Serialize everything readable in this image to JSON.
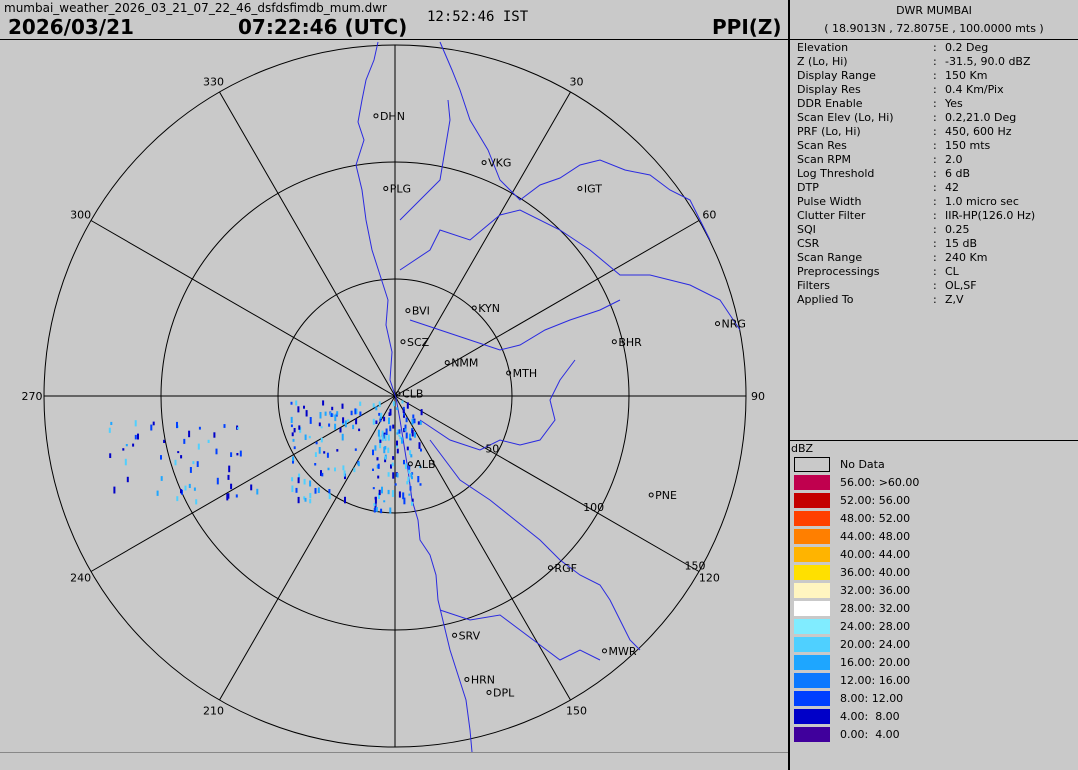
{
  "header": {
    "filename": "mumbai_weather_2026_03_21_07_22_46_dsfdsfimdb_mum.dwr",
    "date": "2026/03/21",
    "time_utc": "07:22:46 (UTC)",
    "time_ist": "12:52:46 IST",
    "product": "PPI(Z)"
  },
  "panel": {
    "title": "DWR MUMBAI",
    "coords": "( 18.9013N , 72.8075E , 100.0000 mts )",
    "params": [
      {
        "key": "Elevation",
        "value": "0.2 Deg"
      },
      {
        "key": "Z (Lo, Hi)",
        "value": "-31.5, 90.0 dBZ"
      },
      {
        "key": "Display Range",
        "value": "150 Km"
      },
      {
        "key": "Display Res",
        "value": "0.4 Km/Pix"
      },
      {
        "key": "DDR Enable",
        "value": "Yes"
      },
      {
        "key": "Scan Elev (Lo, Hi)",
        "value": "0.2,21.0 Deg"
      },
      {
        "key": "PRF (Lo, Hi)",
        "value": "450, 600 Hz"
      },
      {
        "key": "Scan Res",
        "value": "150 mts"
      },
      {
        "key": "Scan RPM",
        "value": "2.0"
      },
      {
        "key": "Log Threshold",
        "value": "6 dB"
      },
      {
        "key": "DTP",
        "value": "42"
      },
      {
        "key": "Pulse Width",
        "value": "1.0 micro sec"
      },
      {
        "key": "Clutter Filter",
        "value": "IIR-HP(126.0 Hz)"
      },
      {
        "key": "SQI",
        "value": "0.25"
      },
      {
        "key": "CSR",
        "value": "15 dB"
      },
      {
        "key": "Scan Range",
        "value": "240 Km"
      },
      {
        "key": "Preprocessings",
        "value": "CL"
      },
      {
        "key": "Filters",
        "value": "OL,SF"
      },
      {
        "key": "Applied To",
        "value": "Z,V"
      }
    ]
  },
  "legend": {
    "unit": "dBZ",
    "no_data_label": "No Data",
    "items": [
      {
        "label": "56.00: >60.00",
        "color": "#c0004e"
      },
      {
        "label": "52.00: 56.00",
        "color": "#c40000"
      },
      {
        "label": "48.00: 52.00",
        "color": "#ff4000"
      },
      {
        "label": "44.00: 48.00",
        "color": "#ff7f00"
      },
      {
        "label": "40.00: 44.00",
        "color": "#ffb400"
      },
      {
        "label": "36.00: 40.00",
        "color": "#ffe000"
      },
      {
        "label": "32.00: 36.00",
        "color": "#fff5c0"
      },
      {
        "label": "28.00: 32.00",
        "color": "#ffffff"
      },
      {
        "label": "24.00: 28.00",
        "color": "#80ecff"
      },
      {
        "label": "20.00: 24.00",
        "color": "#4fd0ff"
      },
      {
        "label": "16.00: 20.00",
        "color": "#1ea6ff"
      },
      {
        "label": "12.00: 16.00",
        "color": "#0a78ff"
      },
      {
        "label": "8.00: 12.00",
        "color": "#0040ff"
      },
      {
        "label": "4.00:  8.00",
        "color": "#0000c8"
      },
      {
        "label": "0.00:  4.00",
        "color": "#40009c"
      }
    ]
  },
  "map": {
    "bearing_labels": [
      "30",
      "60",
      "90",
      "120",
      "150",
      "210",
      "240",
      "270",
      "300",
      "330"
    ],
    "range_labels": [
      "50",
      "100",
      "150"
    ],
    "stations": [
      {
        "name": "DHN",
        "lat": 19.98,
        "lon": 72.73
      },
      {
        "name": "PLG",
        "lat": 19.7,
        "lon": 72.77
      },
      {
        "name": "VKG",
        "lat": 19.8,
        "lon": 73.17
      },
      {
        "name": "IGT",
        "lat": 19.7,
        "lon": 73.56
      },
      {
        "name": "BVI",
        "lat": 19.23,
        "lon": 72.86
      },
      {
        "name": "KYN",
        "lat": 19.24,
        "lon": 73.13
      },
      {
        "name": "SCZ",
        "lat": 19.11,
        "lon": 72.84
      },
      {
        "name": "NMM",
        "lat": 19.03,
        "lon": 73.02
      },
      {
        "name": "MTH",
        "lat": 18.99,
        "lon": 73.27
      },
      {
        "name": "BHR",
        "lat": 19.11,
        "lon": 73.7
      },
      {
        "name": "NRG",
        "lat": 19.18,
        "lon": 74.12
      },
      {
        "name": "CLB",
        "lat": 18.91,
        "lon": 72.82
      },
      {
        "name": "ALB",
        "lat": 18.64,
        "lon": 72.87
      },
      {
        "name": "PNE",
        "lat": 18.52,
        "lon": 73.85
      },
      {
        "name": "RGF",
        "lat": 18.24,
        "lon": 73.44
      },
      {
        "name": "SRV",
        "lat": 17.98,
        "lon": 73.05
      },
      {
        "name": "MWR",
        "lat": 17.92,
        "lon": 73.66
      },
      {
        "name": "HRN",
        "lat": 17.81,
        "lon": 73.1
      },
      {
        "name": "DPL",
        "lat": 17.76,
        "lon": 73.19
      }
    ]
  }
}
